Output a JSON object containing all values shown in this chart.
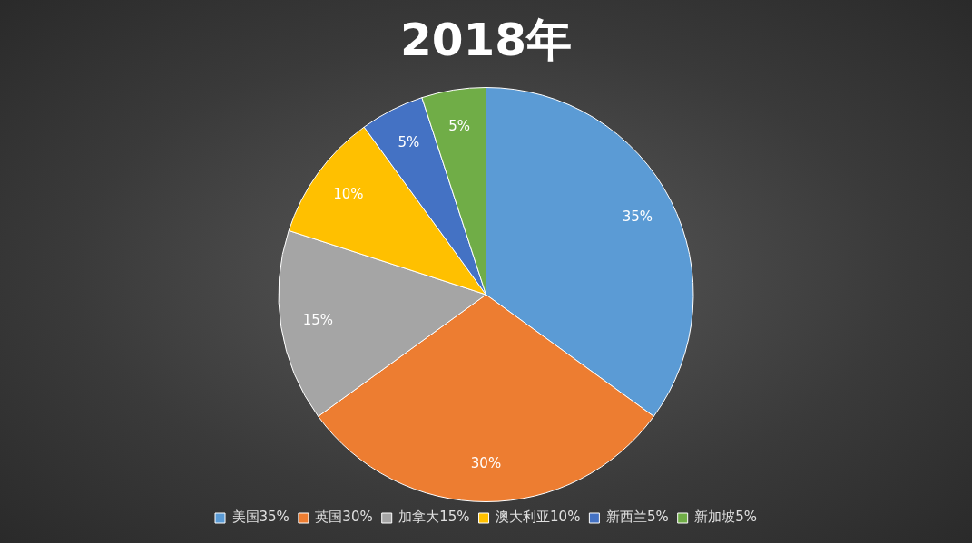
{
  "chart_data": {
    "type": "pie",
    "title": "2018年",
    "categories": [
      "美国35%",
      "英国30%",
      "加拿大15%",
      "澳大利亚10%",
      "新西兰5%",
      "新加坡5%"
    ],
    "values": [
      35,
      30,
      15,
      10,
      5,
      5
    ],
    "colors": [
      "#5b9bd5",
      "#ed7d31",
      "#a5a5a5",
      "#ffc000",
      "#4472c4",
      "#70ad47"
    ],
    "value_labels": [
      "35%",
      "30%",
      "15%",
      "10%",
      "5%",
      "5%"
    ],
    "legend": "bottom"
  }
}
